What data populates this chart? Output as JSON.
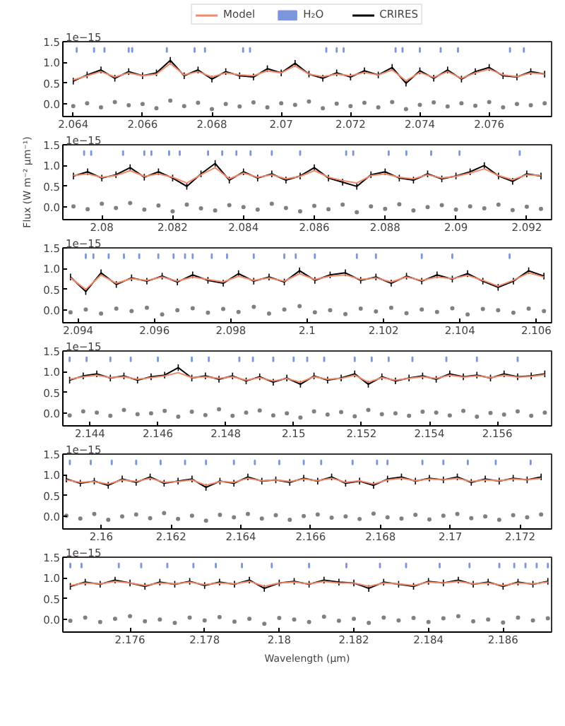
{
  "chart_data": [
    {
      "type": "line",
      "annotations": [
        "1e−15"
      ],
      "legend": "top",
      "xlim": [
        2.0637,
        2.0778
      ],
      "xticks": [
        2.064,
        2.066,
        2.068,
        2.07,
        2.072,
        2.074,
        2.076
      ],
      "ylim": [
        -0.3,
        1.5
      ],
      "yticks": [
        {
          "value": 0,
          "label": "0.0"
        },
        {
          "value": 0.5,
          "label": "0.5"
        },
        {
          "value": 1,
          "label": "1.0"
        },
        {
          "value": 1.5,
          "label": "1.5"
        }
      ],
      "x": [
        2.064,
        2.0644,
        2.0648,
        2.0652,
        2.0656,
        2.066,
        2.0664,
        2.0668,
        2.0672,
        2.0676,
        2.068,
        2.0684,
        2.0688,
        2.0692,
        2.0696,
        2.07,
        2.0704,
        2.0708,
        2.0712,
        2.0716,
        2.072,
        2.0724,
        2.0728,
        2.0732,
        2.0736,
        2.074,
        2.0744,
        2.0748,
        2.0752,
        2.0756,
        2.076,
        2.0764,
        2.0768,
        2.0772,
        2.0776
      ],
      "series": [
        {
          "name": "Model",
          "color": "#f08a6a",
          "values": [
            0.58,
            0.68,
            0.78,
            0.65,
            0.75,
            0.68,
            0.72,
            0.98,
            0.7,
            0.78,
            0.65,
            0.75,
            0.7,
            0.68,
            0.8,
            0.75,
            0.92,
            0.72,
            0.66,
            0.72,
            0.68,
            0.76,
            0.7,
            0.82,
            0.56,
            0.76,
            0.64,
            0.78,
            0.62,
            0.75,
            0.84,
            0.7,
            0.66,
            0.75,
            0.72
          ]
        },
        {
          "name": "H₂O",
          "type": "bar",
          "color": "#7b96dc",
          "x": [
            2.0641,
            2.0646,
            2.0649,
            2.0656,
            2.0657,
            2.0667,
            2.0675,
            2.0678,
            2.0689,
            2.0691,
            2.0713,
            2.0716,
            2.0718,
            2.0733,
            2.0735,
            2.074,
            2.0746,
            2.0751,
            2.0766,
            2.077
          ],
          "base": [
            1.25,
            1.25,
            1.25,
            1.25,
            1.25,
            1.25,
            1.25,
            1.25,
            1.25,
            1.25,
            1.25,
            1.25,
            1.25,
            1.25,
            1.25,
            1.25,
            1.25,
            1.25,
            1.25,
            1.25
          ],
          "values": [
            0.1,
            0.1,
            0.1,
            0.1,
            0.1,
            0.1,
            0.1,
            0.1,
            0.1,
            0.1,
            0.1,
            0.1,
            0.1,
            0.1,
            0.1,
            0.1,
            0.1,
            0.1,
            0.1,
            0.1
          ]
        },
        {
          "name": "CRIRES",
          "color": "#000000",
          "values": [
            0.55,
            0.7,
            0.82,
            0.62,
            0.78,
            0.68,
            0.75,
            1.05,
            0.68,
            0.82,
            0.6,
            0.78,
            0.68,
            0.65,
            0.85,
            0.75,
            0.98,
            0.72,
            0.62,
            0.75,
            0.65,
            0.8,
            0.7,
            0.88,
            0.5,
            0.8,
            0.62,
            0.82,
            0.6,
            0.78,
            0.88,
            0.68,
            0.65,
            0.78,
            0.72
          ],
          "errors": [
            0.08,
            0.08,
            0.08,
            0.08,
            0.08,
            0.08,
            0.08,
            0.08,
            0.08,
            0.08,
            0.08,
            0.08,
            0.08,
            0.08,
            0.08,
            0.08,
            0.08,
            0.08,
            0.08,
            0.08,
            0.08,
            0.08,
            0.08,
            0.08,
            0.08,
            0.08,
            0.08,
            0.08,
            0.08,
            0.08,
            0.08,
            0.08,
            0.08,
            0.08,
            0.08
          ]
        },
        {
          "type": "scatter",
          "marker": "circle",
          "color": "#808080",
          "values": [
            -0.05,
            0.02,
            -0.08,
            0.05,
            -0.03,
            0,
            -0.1,
            0.08,
            -0.05,
            0.03,
            -0.12,
            0,
            -0.06,
            0.04,
            -0.08,
            0.02,
            -0.02,
            0.06,
            -0.1,
            0.01,
            -0.05,
            0.03,
            -0.08,
            0.05,
            -0.12,
            -0.02,
            0.04,
            -0.06,
            0.02,
            -0.04,
            0.05,
            -0.08,
            0,
            -0.03,
            0.02
          ]
        }
      ]
    },
    {
      "type": "line",
      "annotations": [
        "1e−15"
      ],
      "ylabel": "Flux (W m⁻² μm⁻¹)",
      "xlim": [
        2.0789,
        2.0927
      ],
      "xticks": [
        2.08,
        2.082,
        2.084,
        2.086,
        2.088,
        2.09,
        2.092
      ],
      "ylim": [
        -0.3,
        1.5
      ],
      "yticks": [
        {
          "value": 0,
          "label": "0.0"
        },
        {
          "value": 0.5,
          "label": "0.5"
        },
        {
          "value": 1,
          "label": "1.0"
        },
        {
          "value": 1.5,
          "label": "1.5"
        }
      ],
      "x": [
        2.0792,
        2.0796,
        2.08,
        2.0804,
        2.0808,
        2.0812,
        2.0816,
        2.082,
        2.0824,
        2.0828,
        2.0832,
        2.0836,
        2.084,
        2.0844,
        2.0848,
        2.0852,
        2.0856,
        2.086,
        2.0864,
        2.0868,
        2.0872,
        2.0876,
        2.088,
        2.0884,
        2.0888,
        2.0892,
        2.0896,
        2.09,
        2.0904,
        2.0908,
        2.0912,
        2.0916,
        2.092,
        2.0924
      ],
      "series": [
        {
          "color": "#f08a6a",
          "values": [
            0.76,
            0.8,
            0.72,
            0.76,
            0.88,
            0.74,
            0.8,
            0.72,
            0.58,
            0.78,
            0.95,
            0.68,
            0.82,
            0.72,
            0.78,
            0.68,
            0.74,
            0.88,
            0.72,
            0.64,
            0.58,
            0.76,
            0.8,
            0.72,
            0.68,
            0.78,
            0.7,
            0.74,
            0.82,
            0.92,
            0.76,
            0.66,
            0.78,
            0.76
          ]
        },
        {
          "type": "bar",
          "color": "#7b96dc",
          "x": [
            2.0795,
            2.0797,
            2.0806,
            2.0812,
            2.0814,
            2.0819,
            2.0822,
            2.083,
            2.0834,
            2.0838,
            2.0842,
            2.0848,
            2.0856,
            2.0869,
            2.0871,
            2.0881,
            2.0886,
            2.0893,
            2.0901,
            2.0918
          ],
          "base": [
            1.25,
            1.25,
            1.25,
            1.25,
            1.25,
            1.25,
            1.25,
            1.25,
            1.25,
            1.25,
            1.25,
            1.25,
            1.25,
            1.25,
            1.25,
            1.25,
            1.25,
            1.25,
            1.25,
            1.25
          ],
          "values": [
            0.1,
            0.1,
            0.1,
            0.1,
            0.1,
            0.1,
            0.1,
            0.1,
            0.1,
            0.1,
            0.1,
            0.1,
            0.1,
            0.1,
            0.1,
            0.1,
            0.1,
            0.1,
            0.1,
            0.1
          ]
        },
        {
          "color": "#000000",
          "values": [
            0.75,
            0.85,
            0.7,
            0.78,
            0.95,
            0.72,
            0.85,
            0.7,
            0.5,
            0.8,
            1.05,
            0.65,
            0.85,
            0.7,
            0.8,
            0.65,
            0.75,
            0.95,
            0.7,
            0.6,
            0.5,
            0.78,
            0.85,
            0.7,
            0.65,
            0.8,
            0.68,
            0.75,
            0.85,
            1.0,
            0.75,
            0.62,
            0.8,
            0.75
          ],
          "errors": [
            0.08,
            0.08,
            0.08,
            0.08,
            0.08,
            0.08,
            0.08,
            0.08,
            0.08,
            0.08,
            0.08,
            0.08,
            0.08,
            0.08,
            0.08,
            0.08,
            0.08,
            0.08,
            0.08,
            0.08,
            0.08,
            0.08,
            0.08,
            0.08,
            0.08,
            0.08,
            0.08,
            0.08,
            0.08,
            0.08,
            0.08,
            0.08,
            0.08,
            0.08
          ]
        },
        {
          "type": "scatter",
          "marker": "circle",
          "color": "#808080",
          "values": [
            0.02,
            -0.05,
            0.08,
            -0.02,
            0.1,
            -0.06,
            0.04,
            -0.1,
            0.06,
            -0.03,
            -0.08,
            0.05,
            0,
            -0.06,
            0.08,
            -0.02,
            -0.1,
            0.03,
            -0.05,
            0.06,
            -0.12,
            0.02,
            -0.04,
            0.07,
            -0.08,
            0,
            0.05,
            -0.06,
            0.02,
            -0.03,
            0.06,
            -0.07,
            0.01,
            -0.04
          ]
        }
      ]
    },
    {
      "type": "line",
      "annotations": [
        "1e−15"
      ],
      "xlim": [
        2.0936,
        2.1064
      ],
      "xticks": [
        2.094,
        2.096,
        2.098,
        2.1,
        2.102,
        2.104,
        2.106
      ],
      "ylim": [
        -0.3,
        1.5
      ],
      "yticks": [
        {
          "value": 0,
          "label": "0.0"
        },
        {
          "value": 0.5,
          "label": "0.5"
        },
        {
          "value": 1,
          "label": "1.0"
        },
        {
          "value": 1.5,
          "label": "1.5"
        }
      ],
      "x": [
        2.0938,
        2.0942,
        2.0946,
        2.095,
        2.0954,
        2.0958,
        2.0962,
        2.0966,
        2.097,
        2.0974,
        2.0978,
        2.0982,
        2.0986,
        2.099,
        2.0994,
        2.0998,
        2.1002,
        2.1006,
        2.101,
        2.1014,
        2.1018,
        2.1022,
        2.1026,
        2.103,
        2.1034,
        2.1038,
        2.1042,
        2.1046,
        2.105,
        2.1054,
        2.1058,
        2.1062
      ],
      "series": [
        {
          "color": "#f08a6a",
          "values": [
            0.78,
            0.5,
            0.85,
            0.65,
            0.76,
            0.72,
            0.8,
            0.7,
            0.8,
            0.74,
            0.68,
            0.82,
            0.72,
            0.78,
            0.7,
            0.88,
            0.74,
            0.82,
            0.85,
            0.74,
            0.78,
            0.68,
            0.8,
            0.72,
            0.8,
            0.76,
            0.84,
            0.72,
            0.58,
            0.72,
            0.9,
            0.8
          ]
        },
        {
          "type": "bar",
          "color": "#7b96dc",
          "x": [
            2.0942,
            2.0944,
            2.0948,
            2.0952,
            2.0956,
            2.0961,
            2.0965,
            2.0968,
            2.097,
            2.0975,
            2.0979,
            2.0986,
            2.0994,
            2.0997,
            2.1002,
            2.1013,
            2.1018,
            2.103,
            2.1038,
            2.1053
          ],
          "base": [
            1.25,
            1.25,
            1.25,
            1.25,
            1.25,
            1.25,
            1.25,
            1.25,
            1.25,
            1.25,
            1.25,
            1.25,
            1.25,
            1.25,
            1.25,
            1.25,
            1.25,
            1.25,
            1.25,
            1.25
          ],
          "values": [
            0.1,
            0.1,
            0.1,
            0.1,
            0.1,
            0.1,
            0.1,
            0.1,
            0.1,
            0.1,
            0.1,
            0.1,
            0.1,
            0.1,
            0.1,
            0.1,
            0.1,
            0.1,
            0.1,
            0.1
          ]
        },
        {
          "color": "#000000",
          "values": [
            0.8,
            0.45,
            0.9,
            0.62,
            0.78,
            0.7,
            0.82,
            0.68,
            0.85,
            0.72,
            0.65,
            0.88,
            0.7,
            0.8,
            0.68,
            0.95,
            0.72,
            0.85,
            0.9,
            0.72,
            0.8,
            0.65,
            0.82,
            0.7,
            0.85,
            0.75,
            0.88,
            0.7,
            0.55,
            0.7,
            0.95,
            0.82
          ],
          "errors": [
            0.08,
            0.08,
            0.08,
            0.08,
            0.08,
            0.08,
            0.08,
            0.08,
            0.08,
            0.08,
            0.08,
            0.08,
            0.08,
            0.08,
            0.08,
            0.08,
            0.08,
            0.08,
            0.08,
            0.08,
            0.08,
            0.08,
            0.08,
            0.08,
            0.08,
            0.08,
            0.08,
            0.08,
            0.08,
            0.08,
            0.08,
            0.08
          ]
        },
        {
          "type": "scatter",
          "marker": "circle",
          "color": "#808080",
          "values": [
            -0.05,
            0.02,
            -0.08,
            0.04,
            -0.02,
            0.06,
            -0.1,
            0,
            0.05,
            -0.06,
            0.03,
            -0.04,
            0.08,
            -0.08,
            0.02,
            0.1,
            -0.05,
            0,
            -0.09,
            0.04,
            -0.03,
            0.06,
            -0.07,
            0.02,
            -0.04,
            0.05,
            -0.1,
            0.03,
            0,
            -0.06,
            0.04,
            -0.02
          ]
        }
      ]
    },
    {
      "type": "line",
      "annotations": [
        "1e−15"
      ],
      "xlim": [
        2.1432,
        2.1576
      ],
      "xticks": [
        2.144,
        2.146,
        2.148,
        2.15,
        2.152,
        2.154,
        2.156
      ],
      "ylim": [
        -0.3,
        1.5
      ],
      "yticks": [
        {
          "value": 0,
          "label": "0.0"
        },
        {
          "value": 0.5,
          "label": "0.5"
        },
        {
          "value": 1,
          "label": "1.0"
        },
        {
          "value": 1.5,
          "label": "1.5"
        }
      ],
      "x": [
        2.1434,
        2.1438,
        2.1442,
        2.1446,
        2.145,
        2.1454,
        2.1458,
        2.1462,
        2.1466,
        2.147,
        2.1474,
        2.1478,
        2.1482,
        2.1486,
        2.149,
        2.1494,
        2.1498,
        2.1502,
        2.1506,
        2.151,
        2.1514,
        2.1518,
        2.1522,
        2.1526,
        2.153,
        2.1534,
        2.1538,
        2.1542,
        2.1546,
        2.155,
        2.1554,
        2.1558,
        2.1562,
        2.1566,
        2.157,
        2.1574
      ],
      "series": [
        {
          "color": "#f08a6a",
          "values": [
            0.82,
            0.88,
            0.92,
            0.86,
            0.88,
            0.82,
            0.86,
            0.9,
            0.98,
            0.86,
            0.88,
            0.84,
            0.88,
            0.8,
            0.86,
            0.78,
            0.84,
            0.75,
            0.88,
            0.82,
            0.84,
            0.92,
            0.75,
            0.86,
            0.8,
            0.84,
            0.88,
            0.84,
            0.92,
            0.87,
            0.9,
            0.86,
            0.92,
            0.87,
            0.89,
            0.93
          ]
        },
        {
          "type": "bar",
          "color": "#7b96dc",
          "x": [
            2.1434,
            2.1439,
            2.1446,
            2.1452,
            2.146,
            2.147,
            2.1475,
            2.1484,
            2.1488,
            2.1494,
            2.15,
            2.1504,
            2.1509,
            2.1518,
            2.1523,
            2.1528,
            2.1535,
            2.1545,
            2.1554,
            2.1566
          ],
          "base": [
            1.25,
            1.25,
            1.25,
            1.25,
            1.25,
            1.25,
            1.25,
            1.25,
            1.25,
            1.25,
            1.25,
            1.25,
            1.25,
            1.25,
            1.25,
            1.25,
            1.25,
            1.25,
            1.25,
            1.25
          ],
          "values": [
            0.1,
            0.1,
            0.1,
            0.1,
            0.1,
            0.1,
            0.1,
            0.1,
            0.1,
            0.1,
            0.1,
            0.1,
            0.1,
            0.1,
            0.1,
            0.1,
            0.1,
            0.1,
            0.1,
            0.1
          ]
        },
        {
          "color": "#000000",
          "values": [
            0.8,
            0.9,
            0.95,
            0.85,
            0.9,
            0.8,
            0.88,
            0.92,
            1.1,
            0.85,
            0.9,
            0.82,
            0.9,
            0.78,
            0.88,
            0.75,
            0.85,
            0.7,
            0.9,
            0.8,
            0.85,
            0.95,
            0.7,
            0.88,
            0.78,
            0.85,
            0.9,
            0.82,
            0.95,
            0.88,
            0.92,
            0.85,
            0.95,
            0.88,
            0.9,
            0.95
          ],
          "errors": [
            0.08,
            0.08,
            0.08,
            0.08,
            0.08,
            0.08,
            0.08,
            0.08,
            0.08,
            0.08,
            0.08,
            0.08,
            0.08,
            0.08,
            0.08,
            0.08,
            0.08,
            0.08,
            0.08,
            0.08,
            0.08,
            0.08,
            0.08,
            0.08,
            0.08,
            0.08,
            0.08,
            0.08,
            0.08,
            0.08,
            0.08,
            0.08,
            0.08,
            0.08,
            0.08,
            0.08
          ]
        },
        {
          "type": "scatter",
          "marker": "circle",
          "color": "#808080",
          "values": [
            -0.05,
            0.05,
            0.02,
            -0.06,
            0.08,
            -0.02,
            0,
            0.06,
            -0.08,
            0.04,
            -0.04,
            0.1,
            -0.06,
            0.02,
            0.07,
            -0.05,
            0,
            -0.1,
            0.05,
            -0.03,
            0.03,
            -0.07,
            0.08,
            -0.02,
            0,
            -0.06,
            0.04,
            0.02,
            -0.05,
            0.06,
            -0.08,
            0.01,
            -0.03,
            0.05,
            -0.06,
            0.02
          ]
        }
      ]
    },
    {
      "type": "line",
      "annotations": [
        "1e−15"
      ],
      "xlim": [
        2.1589,
        2.1729
      ],
      "xticks": [
        2.16,
        2.162,
        2.164,
        2.166,
        2.168,
        2.17,
        2.172
      ],
      "ylim": [
        -0.3,
        1.5
      ],
      "yticks": [
        {
          "value": 0,
          "label": "0.0"
        },
        {
          "value": 0.5,
          "label": "0.5"
        },
        {
          "value": 1,
          "label": "1.0"
        },
        {
          "value": 1.5,
          "label": "1.5"
        }
      ],
      "x": [
        2.159,
        2.1594,
        2.1598,
        2.1602,
        2.1606,
        2.161,
        2.1614,
        2.1618,
        2.1622,
        2.1626,
        2.163,
        2.1634,
        2.1638,
        2.1642,
        2.1646,
        2.165,
        2.1654,
        2.1658,
        2.1662,
        2.1666,
        2.167,
        2.1674,
        2.1678,
        2.1682,
        2.1686,
        2.169,
        2.1694,
        2.1698,
        2.1702,
        2.1706,
        2.171,
        2.1714,
        2.1718,
        2.1722,
        2.1726
      ],
      "series": [
        {
          "color": "#f08a6a",
          "values": [
            0.88,
            0.82,
            0.84,
            0.78,
            0.88,
            0.84,
            0.92,
            0.82,
            0.84,
            0.88,
            0.75,
            0.84,
            0.82,
            0.92,
            0.86,
            0.88,
            0.84,
            0.9,
            0.86,
            0.92,
            0.82,
            0.86,
            0.78,
            0.88,
            0.92,
            0.86,
            0.9,
            0.88,
            0.92,
            0.84,
            0.88,
            0.86,
            0.9,
            0.88,
            0.92
          ]
        },
        {
          "type": "bar",
          "color": "#7b96dc",
          "x": [
            2.1591,
            2.1597,
            2.1603,
            2.161,
            2.1617,
            2.1624,
            2.163,
            2.1638,
            2.1644,
            2.1651,
            2.1658,
            2.1663,
            2.1672,
            2.1679,
            2.1682,
            2.1692,
            2.1698,
            2.1705,
            2.1713,
            2.1723
          ],
          "base": [
            1.25,
            1.25,
            1.25,
            1.25,
            1.25,
            1.25,
            1.25,
            1.25,
            1.25,
            1.25,
            1.25,
            1.25,
            1.25,
            1.25,
            1.25,
            1.25,
            1.25,
            1.25,
            1.25,
            1.25
          ],
          "values": [
            0.1,
            0.1,
            0.1,
            0.1,
            0.1,
            0.1,
            0.1,
            0.1,
            0.1,
            0.1,
            0.1,
            0.1,
            0.1,
            0.1,
            0.1,
            0.1,
            0.1,
            0.1,
            0.1,
            0.1
          ]
        },
        {
          "color": "#000000",
          "values": [
            0.9,
            0.8,
            0.85,
            0.75,
            0.9,
            0.82,
            0.95,
            0.8,
            0.85,
            0.9,
            0.7,
            0.85,
            0.8,
            0.95,
            0.85,
            0.88,
            0.82,
            0.92,
            0.85,
            0.95,
            0.8,
            0.85,
            0.75,
            0.9,
            0.95,
            0.85,
            0.92,
            0.88,
            0.95,
            0.82,
            0.9,
            0.85,
            0.92,
            0.88,
            0.95
          ],
          "errors": [
            0.08,
            0.08,
            0.08,
            0.08,
            0.08,
            0.08,
            0.08,
            0.08,
            0.08,
            0.08,
            0.08,
            0.08,
            0.08,
            0.08,
            0.08,
            0.08,
            0.08,
            0.08,
            0.08,
            0.08,
            0.08,
            0.08,
            0.08,
            0.08,
            0.08,
            0.08,
            0.08,
            0.08,
            0.08,
            0.08,
            0.08,
            0.08,
            0.08,
            0.08,
            0.08
          ]
        },
        {
          "type": "scatter",
          "marker": "circle",
          "color": "#808080",
          "values": [
            0.02,
            -0.05,
            0.06,
            -0.08,
            0,
            0.05,
            -0.04,
            0.08,
            -0.06,
            0.02,
            -0.1,
            0.04,
            -0.02,
            0.06,
            -0.05,
            0.03,
            -0.08,
            0.01,
            0.05,
            -0.03,
            0,
            -0.06,
            0.07,
            -0.02,
            -0.05,
            0.04,
            -0.07,
            0.02,
            0.06,
            -0.04,
            0,
            -0.08,
            0.03,
            -0.02,
            0.05
          ]
        }
      ]
    },
    {
      "type": "line",
      "annotations": [
        "1e−15"
      ],
      "xlabel": "Wavelength (μm)",
      "xlim": [
        2.1742,
        2.1873
      ],
      "xticks": [
        2.176,
        2.178,
        2.18,
        2.182,
        2.184,
        2.186
      ],
      "ylim": [
        -0.3,
        1.5
      ],
      "yticks": [
        {
          "value": 0,
          "label": "0.0"
        },
        {
          "value": 0.5,
          "label": "0.5"
        },
        {
          "value": 1,
          "label": "1.0"
        },
        {
          "value": 1.5,
          "label": "1.5"
        }
      ],
      "x": [
        2.1744,
        2.1748,
        2.1752,
        2.1756,
        2.176,
        2.1764,
        2.1768,
        2.1772,
        2.1776,
        2.178,
        2.1784,
        2.1788,
        2.1792,
        2.1796,
        2.18,
        2.1804,
        2.1808,
        2.1812,
        2.1816,
        2.182,
        2.1824,
        2.1828,
        2.1832,
        2.1836,
        2.184,
        2.1844,
        2.1848,
        2.1852,
        2.1856,
        2.186,
        2.1864,
        2.1868,
        2.1872
      ],
      "series": [
        {
          "color": "#f08a6a",
          "values": [
            0.82,
            0.88,
            0.86,
            0.92,
            0.88,
            0.82,
            0.88,
            0.86,
            0.9,
            0.84,
            0.88,
            0.86,
            0.92,
            0.8,
            0.88,
            0.9,
            0.86,
            0.92,
            0.88,
            0.88,
            0.8,
            0.88,
            0.86,
            0.82,
            0.9,
            0.88,
            0.92,
            0.86,
            0.88,
            0.82,
            0.88,
            0.86,
            0.9
          ]
        },
        {
          "type": "bar",
          "color": "#7b96dc",
          "x": [
            2.1744,
            2.1747,
            2.1757,
            2.1763,
            2.177,
            2.1777,
            2.1783,
            2.179,
            2.1798,
            2.1808,
            2.1818,
            2.1827,
            2.1834,
            2.1843,
            2.1851,
            2.1859,
            2.1863,
            2.1866,
            2.1869,
            2.1872
          ],
          "base": [
            1.25,
            1.25,
            1.25,
            1.25,
            1.25,
            1.25,
            1.25,
            1.25,
            1.25,
            1.25,
            1.25,
            1.25,
            1.25,
            1.25,
            1.25,
            1.25,
            1.25,
            1.25,
            1.25,
            1.25
          ],
          "values": [
            0.1,
            0.1,
            0.1,
            0.1,
            0.1,
            0.1,
            0.1,
            0.1,
            0.1,
            0.1,
            0.1,
            0.1,
            0.1,
            0.1,
            0.1,
            0.1,
            0.1,
            0.1,
            0.1,
            0.1
          ]
        },
        {
          "color": "#000000",
          "values": [
            0.8,
            0.9,
            0.85,
            0.95,
            0.88,
            0.8,
            0.9,
            0.85,
            0.92,
            0.82,
            0.9,
            0.85,
            0.95,
            0.75,
            0.88,
            0.92,
            0.85,
            0.95,
            0.9,
            0.88,
            0.75,
            0.9,
            0.85,
            0.8,
            0.92,
            0.88,
            0.95,
            0.85,
            0.9,
            0.8,
            0.9,
            0.85,
            0.92
          ],
          "errors": [
            0.08,
            0.08,
            0.08,
            0.08,
            0.08,
            0.08,
            0.08,
            0.08,
            0.08,
            0.08,
            0.08,
            0.08,
            0.08,
            0.08,
            0.08,
            0.08,
            0.08,
            0.08,
            0.08,
            0.08,
            0.08,
            0.08,
            0.08,
            0.08,
            0.08,
            0.08,
            0.08,
            0.08,
            0.08,
            0.08,
            0.08,
            0.08,
            0.08
          ]
        },
        {
          "type": "scatter",
          "marker": "circle",
          "color": "#808080",
          "values": [
            -0.03,
            0.05,
            -0.06,
            0.02,
            0.08,
            -0.04,
            0,
            -0.08,
            0.05,
            -0.02,
            0.06,
            -0.05,
            0.02,
            -0.1,
            0.04,
            0,
            -0.06,
            0.07,
            -0.03,
            0.02,
            -0.08,
            0.05,
            -0.02,
            0.04,
            -0.06,
            0.03,
            0.08,
            -0.04,
            0,
            -0.07,
            0.05,
            -0.02,
            0.03
          ]
        }
      ]
    }
  ]
}
